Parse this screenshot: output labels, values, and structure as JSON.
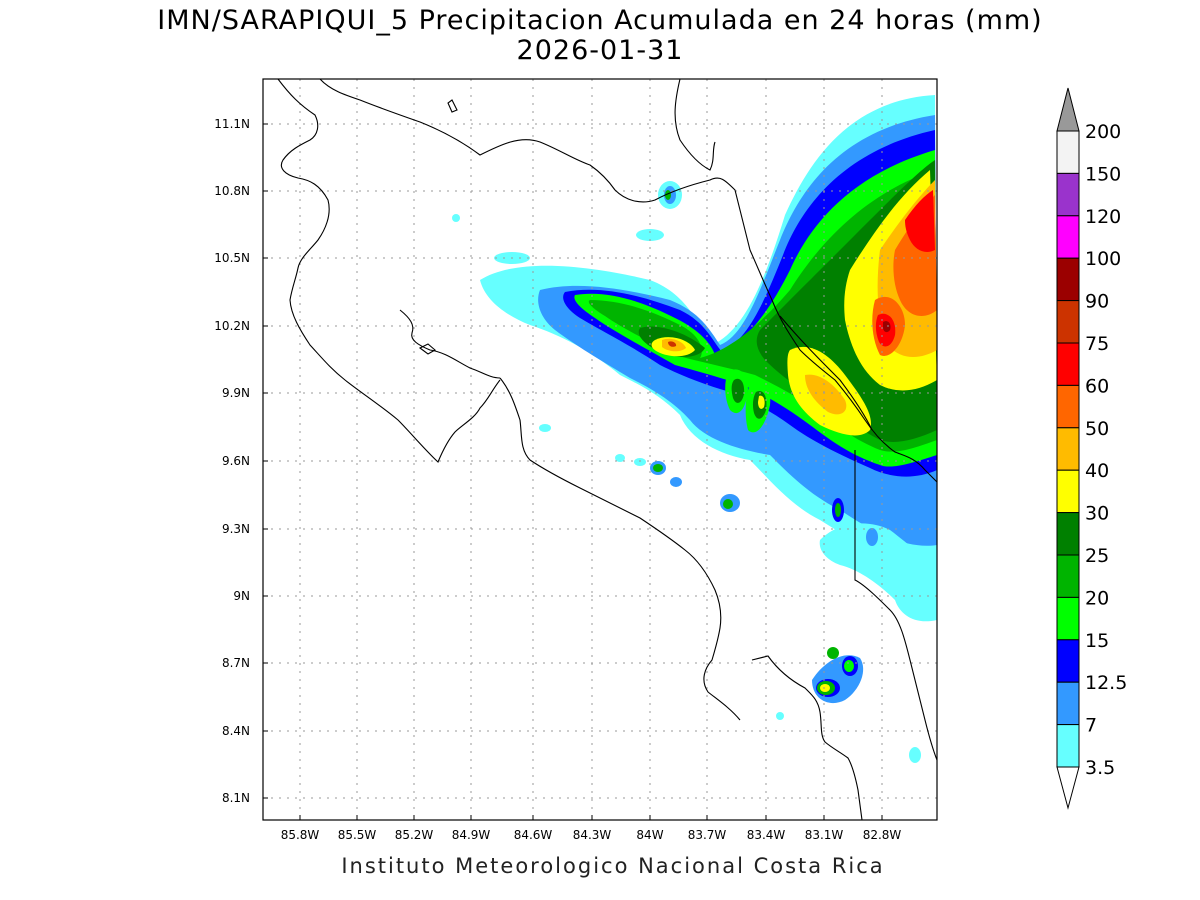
{
  "title": "IMN/SARAPIQUI_5 Precipitacion Acumulada en 24 horas (mm)",
  "date": "2026-01-31",
  "footer": "Instituto Meteorologico Nacional Costa Rica",
  "x_ticks": [
    "85.8W",
    "85.5W",
    "85.2W",
    "84.9W",
    "84.6W",
    "84.3W",
    "84W",
    "83.7W",
    "83.4W",
    "83.1W",
    "82.8W"
  ],
  "y_ticks": [
    "11.1N",
    "10.8N",
    "10.5N",
    "10.2N",
    "9.9N",
    "9.6N",
    "9.3N",
    "9N",
    "8.7N",
    "8.4N",
    "8.1N"
  ],
  "legend": {
    "labels": [
      "200",
      "150",
      "120",
      "100",
      "90",
      "75",
      "60",
      "50",
      "40",
      "30",
      "25",
      "20",
      "15",
      "12.5",
      "7",
      "3.5"
    ],
    "colors": [
      "#f3f3f3",
      "#9a33cc",
      "#ff00ff",
      "#9b0000",
      "#cc3300",
      "#ff0000",
      "#ff6600",
      "#ffbb00",
      "#ffff00",
      "#008000",
      "#00b400",
      "#00ff00",
      "#0000ff",
      "#3399ff",
      "#66ffff"
    ]
  },
  "colors": {
    "cyan": "#66ffff",
    "blue_light": "#3399ff",
    "blue": "#0000ff",
    "green_light": "#00ff00",
    "green": "#00b400",
    "green_dark": "#008000",
    "yellow": "#ffff00",
    "gold": "#ffbb00",
    "orange": "#ff6600",
    "red": "#ff0000",
    "brown": "#cc3300",
    "dark_red": "#9b0000"
  }
}
